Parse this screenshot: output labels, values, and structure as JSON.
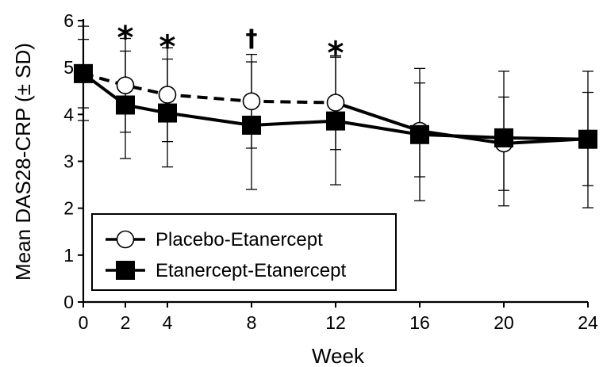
{
  "chart_data": {
    "type": "line",
    "xlabel": "Week",
    "ylabel": "Mean DAS28-CRP (± SD)",
    "x": [
      0,
      2,
      4,
      8,
      12,
      16,
      20,
      24
    ],
    "xticks": [
      "0",
      "2",
      "4",
      "8",
      "12",
      "16",
      "20",
      "24"
    ],
    "ylim": [
      0,
      6
    ],
    "yticks": [
      "0",
      "1",
      "2",
      "3",
      "4",
      "5",
      "6"
    ],
    "grid": false,
    "legend_position": "bottom-left",
    "series": [
      {
        "name": "Placebo-Etanercept",
        "marker": "open-circle",
        "dashed_until_week": 12,
        "values": [
          4.87,
          4.62,
          4.42,
          4.28,
          4.25,
          3.65,
          3.38,
          3.48
        ],
        "sd_upper": [
          5.88,
          5.62,
          5.42,
          5.28,
          5.25,
          4.67,
          4.37,
          4.47
        ],
        "sd_lower": [
          3.87,
          3.62,
          3.42,
          3.28,
          3.25,
          2.67,
          2.38,
          2.48
        ]
      },
      {
        "name": "Etanercept-Etanercept",
        "marker": "filled-square",
        "dashed_until_week": null,
        "values": [
          4.87,
          4.2,
          4.03,
          3.77,
          3.86,
          3.57,
          3.5,
          3.47
        ],
        "sd_upper": [
          5.6,
          5.35,
          5.18,
          5.12,
          5.22,
          4.98,
          4.92,
          4.92
        ],
        "sd_lower": [
          4.14,
          3.06,
          2.88,
          2.4,
          2.5,
          2.16,
          2.05,
          2.01
        ]
      }
    ],
    "annotations": [
      {
        "x": 2,
        "y": 5.85,
        "text": "*"
      },
      {
        "x": 4,
        "y": 5.65,
        "text": "*"
      },
      {
        "x": 8,
        "y": 5.62,
        "text": "†"
      },
      {
        "x": 12,
        "y": 5.52,
        "text": "*"
      }
    ]
  }
}
